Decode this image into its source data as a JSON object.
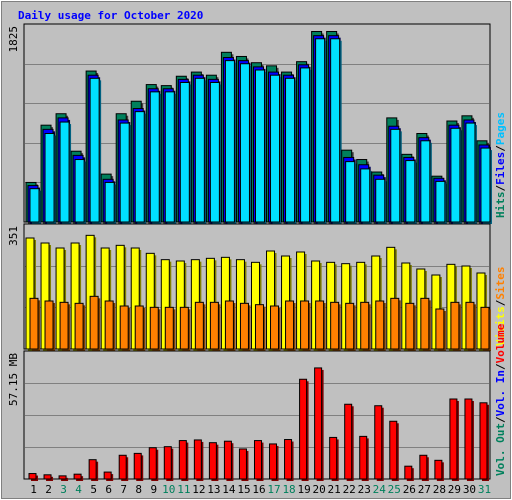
{
  "title": "Daily usage for October 2020",
  "colors": {
    "background": "#c0c0c0",
    "panel": "#c0c0c0",
    "title": "#0000ff",
    "hits": "#00805c",
    "files": "#00e0ff",
    "pages": "#00c0ff",
    "visits": "#ffff00",
    "sites": "#ff8000",
    "volume": "#ff0000",
    "text": "#000000",
    "weekend_day": "#00805c",
    "separator": "#000000"
  },
  "panel_labels": {
    "top_max": "1825",
    "mid_max": "351",
    "bottom_max": "57.15 MB"
  },
  "legend_top": [
    {
      "text": "Hits",
      "color_key": "hits"
    },
    {
      "text": "/",
      "color_key": "text"
    },
    {
      "text": "Files",
      "color_key": "title"
    },
    {
      "text": "/",
      "color_key": "text"
    },
    {
      "text": "Pages",
      "color_key": "pages"
    }
  ],
  "legend_mid": [
    {
      "text": "Visits",
      "color_key": "visits"
    },
    {
      "text": "/",
      "color_key": "text"
    },
    {
      "text": "Sites",
      "color_key": "sites"
    }
  ],
  "legend_bottom": [
    {
      "text": "Vol. Out",
      "color_key": "hits"
    },
    {
      "text": "/",
      "color_key": "text"
    },
    {
      "text": "Vol. In",
      "color_key": "title"
    },
    {
      "text": "/",
      "color_key": "text"
    },
    {
      "text": "Volume",
      "color_key": "volume"
    }
  ],
  "chart_data": {
    "type": "bar",
    "title": "Daily usage for October 2020",
    "categories": [
      "1",
      "2",
      "3",
      "4",
      "5",
      "6",
      "7",
      "8",
      "9",
      "10",
      "11",
      "12",
      "13",
      "14",
      "15",
      "16",
      "17",
      "18",
      "19",
      "20",
      "21",
      "22",
      "23",
      "24",
      "25",
      "26",
      "27",
      "28",
      "29",
      "30",
      "31"
    ],
    "weekend_days": [
      "3",
      "4",
      "10",
      "11",
      "17",
      "18",
      "24",
      "25",
      "31"
    ],
    "panels": [
      {
        "name": "top",
        "max_label": "1825",
        "ylim": [
          0,
          1825
        ],
        "series": [
          {
            "name": "Hits",
            "values": [
              380,
              930,
              1040,
              680,
              1450,
              460,
              1040,
              1160,
              1320,
              1310,
              1400,
              1440,
              1410,
              1630,
              1590,
              1530,
              1500,
              1440,
              1540,
              1830,
              1830,
              690,
              600,
              480,
              1000,
              650,
              850,
              440,
              970,
              1020,
              780
            ]
          },
          {
            "name": "Files",
            "values": [
              350,
              890,
              1000,
              640,
              1410,
              410,
              980,
              1090,
              1280,
              1280,
              1370,
              1410,
              1370,
              1580,
              1550,
              1490,
              1440,
              1410,
              1510,
              1790,
              1790,
              620,
              550,
              450,
              920,
              620,
              810,
              420,
              930,
              980,
              740
            ]
          },
          {
            "name": "Pages",
            "values": [
              320,
              850,
              960,
              600,
              1380,
              380,
              950,
              1060,
              1250,
              1250,
              1340,
              1380,
              1340,
              1550,
              1520,
              1460,
              1410,
              1380,
              1480,
              1760,
              1760,
              580,
              510,
              410,
              890,
              590,
              780,
              390,
              900,
              950,
              710
            ]
          }
        ]
      },
      {
        "name": "middle",
        "max_label": "351",
        "ylim": [
          0,
          351
        ],
        "series": [
          {
            "name": "Visits",
            "values": [
              333,
              318,
              303,
              318,
              341,
              303,
              311,
              303,
              287,
              268,
              264,
              268,
              272,
              275,
              268,
              260,
              294,
              279,
              291,
              264,
              260,
              256,
              260,
              279,
              305,
              258,
              240,
              222,
              254,
              249,
              228
            ]
          },
          {
            "name": "Sites",
            "values": [
              152,
              144,
              140,
              137,
              158,
              144,
              129,
              129,
              125,
              125,
              125,
              140,
              140,
              144,
              137,
              133,
              129,
              144,
              144,
              144,
              140,
              137,
              140,
              144,
              152,
              137,
              152,
              120,
              140,
              140,
              125
            ]
          }
        ]
      },
      {
        "name": "bottom",
        "max_label": "57.15 MB",
        "ylim": [
          0,
          57.15
        ],
        "series": [
          {
            "name": "Volume",
            "values": [
              2.6,
              2.0,
              1.5,
              2.3,
              9.2,
              3.3,
              11.3,
              12.2,
              14.9,
              15.4,
              18.3,
              18.6,
              17.3,
              18.0,
              14.3,
              18.3,
              16.7,
              18.8,
              47.5,
              52.9,
              19.8,
              35.6,
              20.3,
              34.9,
              27.5,
              6.1,
              11.3,
              8.9,
              38.1,
              38.1,
              36.3
            ]
          }
        ]
      }
    ],
    "xlabel": "",
    "ylabel": "",
    "grid": true
  }
}
